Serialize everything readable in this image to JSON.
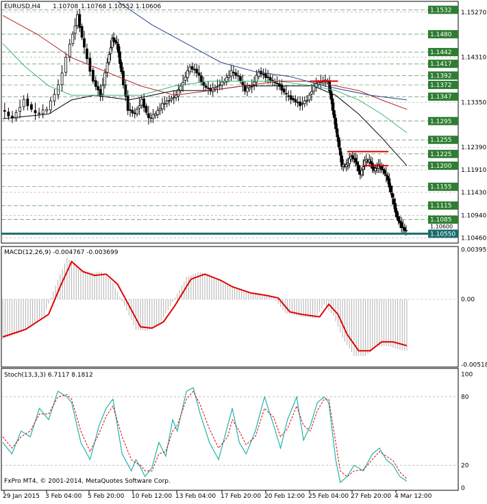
{
  "chart_data": {
    "type": "candlestick",
    "header": {
      "symbol_tf": "EURUSD,H4",
      "open": "1.10708",
      "high": "1.10768",
      "low": "1.10552",
      "close": "1.10606"
    },
    "colors": {
      "price_line": "#000000",
      "grid": "#9e9e9e",
      "level_lines": "#2e7d32",
      "ma_fast": "#000000",
      "ma_green": "#3cb371",
      "ma_red": "#b22222",
      "ma_blue": "#27408b",
      "macd_signal": "#e00000",
      "macd_hist": "#b0b0b0",
      "stoch_main": "#20b2aa",
      "stoch_signal": "#e00000",
      "resistance": "#e00000",
      "current_price": "#1b6b6b",
      "label_bg": "#2e7d32",
      "label_text": "#ffffff"
    },
    "price_axis": {
      "range": [
        1.1035,
        1.155
      ],
      "ticks": [
        "1.15270",
        "1.14310",
        "1.13350",
        "1.12390",
        "1.11910",
        "1.11430",
        "1.10940",
        "1.10460"
      ]
    },
    "level_labels": [
      1.1532,
      1.148,
      1.1442,
      1.1417,
      1.1392,
      1.1372,
      1.1347,
      1.1295,
      1.1255,
      1.1225,
      1.12,
      1.1155,
      1.1115,
      1.1085
    ],
    "current_price_label": "1.10550",
    "extra_label": "1.10600",
    "time_labels": [
      "29 Jan 2015",
      "3 Feb 04:00",
      "5 Feb 20:00",
      "10 Feb 12:00",
      "13 Feb 04:00",
      "17 Feb 20:00",
      "20 Feb 12:00",
      "25 Feb 04:00",
      "27 Feb 20:00",
      "4 Mar 12:00"
    ],
    "price_path": [
      [
        0,
        1.132
      ],
      [
        5,
        1.13
      ],
      [
        10,
        1.134
      ],
      [
        15,
        1.131
      ],
      [
        20,
        1.132
      ],
      [
        25,
        1.137
      ],
      [
        30,
        1.146
      ],
      [
        33,
        1.152
      ],
      [
        36,
        1.145
      ],
      [
        40,
        1.138
      ],
      [
        43,
        1.135
      ],
      [
        46,
        1.142
      ],
      [
        48,
        1.147
      ],
      [
        50,
        1.146
      ],
      [
        52,
        1.14
      ],
      [
        55,
        1.132
      ],
      [
        58,
        1.131
      ],
      [
        61,
        1.134
      ],
      [
        64,
        1.13
      ],
      [
        67,
        1.131
      ],
      [
        70,
        1.133
      ],
      [
        73,
        1.134
      ],
      [
        76,
        1.135
      ],
      [
        79,
        1.138
      ],
      [
        82,
        1.141
      ],
      [
        85,
        1.14
      ],
      [
        88,
        1.137
      ],
      [
        91,
        1.136
      ],
      [
        94,
        1.137
      ],
      [
        97,
        1.138
      ],
      [
        100,
        1.14
      ],
      [
        103,
        1.139
      ],
      [
        106,
        1.136
      ],
      [
        109,
        1.137
      ],
      [
        112,
        1.14
      ],
      [
        115,
        1.139
      ],
      [
        118,
        1.138
      ],
      [
        121,
        1.137
      ],
      [
        124,
        1.135
      ],
      [
        127,
        1.134
      ],
      [
        130,
        1.133
      ],
      [
        133,
        1.134
      ],
      [
        136,
        1.137
      ],
      [
        139,
        1.138
      ],
      [
        142,
        1.138
      ],
      [
        144,
        1.132
      ],
      [
        146,
        1.126
      ],
      [
        148,
        1.12
      ],
      [
        150,
        1.12
      ],
      [
        152,
        1.122
      ],
      [
        154,
        1.121
      ],
      [
        156,
        1.118
      ],
      [
        158,
        1.121
      ],
      [
        160,
        1.121
      ],
      [
        162,
        1.119
      ],
      [
        164,
        1.12
      ],
      [
        166,
        1.119
      ],
      [
        168,
        1.117
      ],
      [
        170,
        1.113
      ],
      [
        172,
        1.109
      ],
      [
        174,
        1.107
      ],
      [
        176,
        1.106
      ]
    ],
    "moving_averages": [
      {
        "id": "ma_fast",
        "points": [
          [
            0,
            1.13
          ],
          [
            20,
            1.131
          ],
          [
            30,
            1.134
          ],
          [
            40,
            1.135
          ],
          [
            55,
            1.134
          ],
          [
            65,
            1.135
          ],
          [
            75,
            1.136
          ],
          [
            90,
            1.136
          ],
          [
            105,
            1.137
          ],
          [
            120,
            1.137
          ],
          [
            135,
            1.137
          ],
          [
            145,
            1.135
          ],
          [
            155,
            1.131
          ],
          [
            165,
            1.126
          ],
          [
            176,
            1.12
          ]
        ]
      },
      {
        "id": "ma_green",
        "points": [
          [
            0,
            1.146
          ],
          [
            10,
            1.141
          ],
          [
            20,
            1.137
          ],
          [
            30,
            1.135
          ],
          [
            45,
            1.135
          ],
          [
            60,
            1.135
          ],
          [
            75,
            1.137
          ],
          [
            90,
            1.138
          ],
          [
            105,
            1.138
          ],
          [
            120,
            1.138
          ],
          [
            135,
            1.137
          ],
          [
            145,
            1.136
          ],
          [
            155,
            1.134
          ],
          [
            165,
            1.131
          ],
          [
            176,
            1.127
          ]
        ]
      },
      {
        "id": "ma_red",
        "points": [
          [
            0,
            1.152
          ],
          [
            15,
            1.148
          ],
          [
            30,
            1.143
          ],
          [
            45,
            1.14
          ],
          [
            60,
            1.137
          ],
          [
            75,
            1.135
          ],
          [
            90,
            1.136
          ],
          [
            105,
            1.137
          ],
          [
            120,
            1.138
          ],
          [
            135,
            1.138
          ],
          [
            145,
            1.137
          ],
          [
            155,
            1.136
          ],
          [
            165,
            1.134
          ],
          [
            176,
            1.132
          ]
        ]
      },
      {
        "id": "ma_blue",
        "points": [
          [
            50,
            1.155
          ],
          [
            65,
            1.15
          ],
          [
            80,
            1.146
          ],
          [
            95,
            1.142
          ],
          [
            110,
            1.14
          ],
          [
            125,
            1.139
          ],
          [
            140,
            1.137
          ],
          [
            150,
            1.136
          ],
          [
            160,
            1.135
          ],
          [
            176,
            1.134
          ]
        ]
      }
    ],
    "resistance_lines": [
      {
        "x": [
          134,
          146
        ],
        "y": 1.138
      },
      {
        "x": [
          150,
          168
        ],
        "y": 1.123
      },
      {
        "x": [
          157,
          168
        ],
        "y": 1.12
      }
    ],
    "macd": {
      "title": "MACD(12,26,9) -0.004767 -0.003699",
      "axis": {
        "max": "0.003957",
        "mid": "0.00",
        "min": "-0.005183"
      },
      "range": [
        -0.0054,
        0.0042
      ],
      "signal": [
        [
          0,
          -0.003
        ],
        [
          10,
          -0.0024
        ],
        [
          20,
          -0.0012
        ],
        [
          25,
          0.001
        ],
        [
          30,
          0.003
        ],
        [
          35,
          0.0022
        ],
        [
          40,
          0.0019
        ],
        [
          45,
          0.002
        ],
        [
          50,
          0.0012
        ],
        [
          55,
          -0.0005
        ],
        [
          60,
          -0.0022
        ],
        [
          65,
          -0.0023
        ],
        [
          70,
          -0.0018
        ],
        [
          75,
          -0.0005
        ],
        [
          82,
          0.0016
        ],
        [
          88,
          0.002
        ],
        [
          95,
          0.0015
        ],
        [
          100,
          0.001
        ],
        [
          108,
          0.0005
        ],
        [
          115,
          0.0003
        ],
        [
          120,
          0.0001
        ],
        [
          125,
          -0.001
        ],
        [
          130,
          -0.0012
        ],
        [
          138,
          -0.0014
        ],
        [
          142,
          -0.0004
        ],
        [
          146,
          -0.0012
        ],
        [
          150,
          -0.0028
        ],
        [
          155,
          -0.0041
        ],
        [
          160,
          -0.0041
        ],
        [
          165,
          -0.0034
        ],
        [
          170,
          -0.0034
        ],
        [
          176,
          -0.0037
        ]
      ]
    },
    "stoch": {
      "title": "Stoch(13,3,3) 6.7117 8.1812",
      "axis": [
        "100",
        "80",
        "20",
        "0"
      ],
      "range": [
        -2,
        105
      ],
      "main": [
        [
          0,
          40
        ],
        [
          4,
          30
        ],
        [
          8,
          50
        ],
        [
          12,
          45
        ],
        [
          16,
          70
        ],
        [
          20,
          60
        ],
        [
          24,
          85
        ],
        [
          28,
          80
        ],
        [
          30,
          75
        ],
        [
          34,
          40
        ],
        [
          38,
          25
        ],
        [
          42,
          55
        ],
        [
          45,
          70
        ],
        [
          48,
          78
        ],
        [
          52,
          30
        ],
        [
          56,
          15
        ],
        [
          58,
          25
        ],
        [
          60,
          18
        ],
        [
          62,
          10
        ],
        [
          65,
          18
        ],
        [
          68,
          40
        ],
        [
          71,
          28
        ],
        [
          74,
          60
        ],
        [
          76,
          50
        ],
        [
          80,
          85
        ],
        [
          83,
          88
        ],
        [
          86,
          65
        ],
        [
          90,
          40
        ],
        [
          94,
          25
        ],
        [
          98,
          55
        ],
        [
          100,
          70
        ],
        [
          103,
          40
        ],
        [
          106,
          30
        ],
        [
          110,
          50
        ],
        [
          114,
          80
        ],
        [
          118,
          55
        ],
        [
          121,
          35
        ],
        [
          124,
          60
        ],
        [
          128,
          80
        ],
        [
          131,
          42
        ],
        [
          134,
          55
        ],
        [
          137,
          75
        ],
        [
          140,
          80
        ],
        [
          142,
          75
        ],
        [
          145,
          25
        ],
        [
          147,
          5
        ],
        [
          150,
          10
        ],
        [
          153,
          20
        ],
        [
          157,
          15
        ],
        [
          161,
          30
        ],
        [
          164,
          35
        ],
        [
          167,
          25
        ],
        [
          170,
          20
        ],
        [
          173,
          10
        ],
        [
          176,
          6
        ]
      ],
      "signal": [
        [
          0,
          45
        ],
        [
          4,
          35
        ],
        [
          8,
          45
        ],
        [
          12,
          50
        ],
        [
          16,
          65
        ],
        [
          20,
          65
        ],
        [
          24,
          80
        ],
        [
          28,
          82
        ],
        [
          30,
          78
        ],
        [
          34,
          50
        ],
        [
          38,
          32
        ],
        [
          42,
          48
        ],
        [
          45,
          63
        ],
        [
          48,
          72
        ],
        [
          52,
          45
        ],
        [
          56,
          25
        ],
        [
          58,
          22
        ],
        [
          60,
          20
        ],
        [
          62,
          15
        ],
        [
          65,
          15
        ],
        [
          68,
          30
        ],
        [
          71,
          32
        ],
        [
          74,
          50
        ],
        [
          76,
          55
        ],
        [
          80,
          78
        ],
        [
          83,
          85
        ],
        [
          86,
          73
        ],
        [
          90,
          52
        ],
        [
          94,
          35
        ],
        [
          98,
          45
        ],
        [
          100,
          60
        ],
        [
          103,
          50
        ],
        [
          106,
          38
        ],
        [
          110,
          45
        ],
        [
          114,
          70
        ],
        [
          118,
          62
        ],
        [
          121,
          45
        ],
        [
          124,
          52
        ],
        [
          128,
          72
        ],
        [
          131,
          55
        ],
        [
          134,
          50
        ],
        [
          137,
          68
        ],
        [
          140,
          78
        ],
        [
          142,
          78
        ],
        [
          145,
          40
        ],
        [
          147,
          15
        ],
        [
          150,
          10
        ],
        [
          153,
          15
        ],
        [
          157,
          16
        ],
        [
          161,
          25
        ],
        [
          164,
          32
        ],
        [
          167,
          28
        ],
        [
          170,
          24
        ],
        [
          173,
          14
        ],
        [
          176,
          8
        ]
      ]
    },
    "copyright": "FxPro MT4, © 2001-2014, MetaQuotes Software Corp."
  }
}
